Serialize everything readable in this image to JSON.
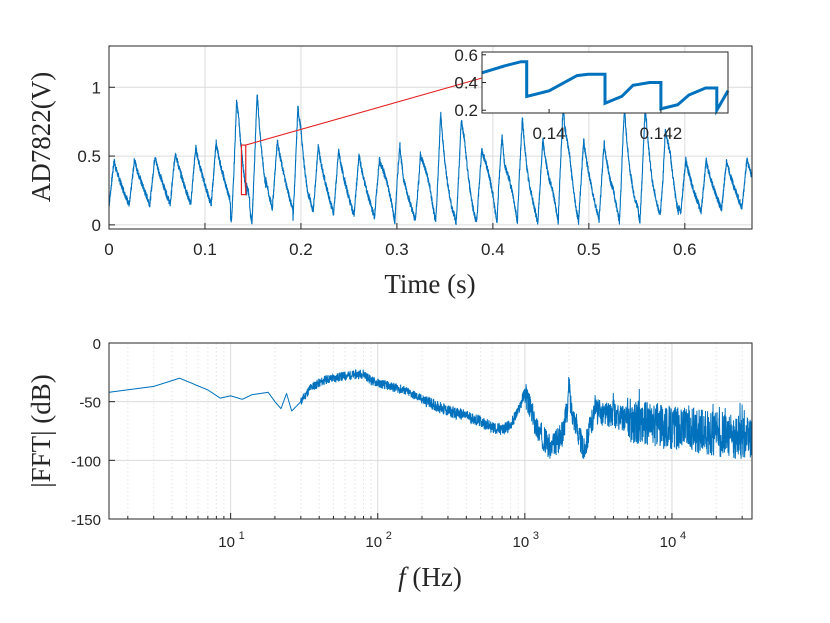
{
  "colors": {
    "line": "#0072bd",
    "zoom": "#e32222",
    "axis": "#262626"
  },
  "chart_data": [
    {
      "type": "line",
      "title": "",
      "xlabel": "Time (s)",
      "ylabel": "AD7822(V)",
      "xlim": [
        0,
        0.67
      ],
      "ylim": [
        -0.03,
        1.3
      ],
      "xticks": [
        "0",
        "0.1",
        "0.2",
        "0.3",
        "0.4",
        "0.5",
        "0.6"
      ],
      "yticks": [
        "0",
        "0.5",
        "1"
      ],
      "grid": true,
      "signal": {
        "oscillation_hz": 47,
        "min_v": 0.08,
        "typical_peak_v": 0.55,
        "max_peak_v": 0.9,
        "large_burst_times_s": [
          0.135,
          0.155,
          0.2,
          0.295,
          0.335,
          0.345,
          0.37,
          0.4,
          0.425,
          0.47,
          0.48,
          0.535,
          0.56,
          0.585
        ]
      },
      "zoom_box": {
        "x": [
          0.138,
          0.1425
        ],
        "y": [
          0.22,
          0.58
        ]
      }
    },
    {
      "type": "line",
      "title": "",
      "xlabel": "",
      "ylabel": "",
      "xlim": [
        0.1388,
        0.1432
      ],
      "ylim": [
        0.18,
        0.62
      ],
      "xticks": [
        "0.14",
        "0.142"
      ],
      "yticks": [
        "0.2",
        "0.4",
        "0.6"
      ],
      "x": [
        0.1388,
        0.1392,
        0.1395,
        0.1396,
        0.14,
        0.1405,
        0.1407,
        0.141,
        0.1413,
        0.1415,
        0.1418,
        0.142,
        0.1423,
        0.1425,
        0.1428,
        0.143,
        0.1432
      ],
      "y": [
        0.47,
        0.52,
        0.55,
        0.3,
        0.34,
        0.45,
        0.46,
        0.25,
        0.3,
        0.38,
        0.4,
        0.21,
        0.24,
        0.31,
        0.36,
        0.2,
        0.34
      ]
    },
    {
      "type": "line",
      "title": "",
      "xlabel_prefix": "f",
      "xlabel": " (Hz)",
      "ylabel": "|FFT| (dB)",
      "xscale": "log",
      "xlim": [
        1.49,
        35000
      ],
      "ylim": [
        -150,
        0
      ],
      "xticks": [
        {
          "base": "10",
          "exp": "1"
        },
        {
          "base": "10",
          "exp": "2"
        },
        {
          "base": "10",
          "exp": "3"
        },
        {
          "base": "10",
          "exp": "4"
        }
      ],
      "yticks": [
        "0",
        "-50",
        "-100",
        "-150"
      ],
      "grid": true,
      "x": [
        1.49,
        3,
        4.5,
        7,
        8.5,
        10,
        12,
        14,
        16,
        18,
        20,
        22,
        24,
        26,
        30,
        35,
        40,
        45,
        50,
        55,
        60,
        70,
        80,
        90,
        100,
        150,
        200,
        300,
        400,
        500,
        600,
        700,
        800,
        900,
        1000,
        1200,
        1500,
        1800,
        2000,
        2500,
        3000,
        4000,
        5000,
        7000,
        10000,
        15000,
        20000,
        35000
      ],
      "y": [
        -42,
        -37,
        -30,
        -40,
        -47,
        -45,
        -48,
        -44,
        -43,
        -42,
        -50,
        -56,
        -43,
        -58,
        -50,
        -38,
        -34,
        -31,
        -30,
        -29,
        -28,
        -27,
        -26,
        -32,
        -34,
        -40,
        -48,
        -58,
        -62,
        -67,
        -72,
        -74,
        -70,
        -58,
        -42,
        -72,
        -90,
        -78,
        -48,
        -92,
        -58,
        -62,
        -65,
        -70,
        -72,
        -75,
        -78,
        -82
      ]
    }
  ]
}
